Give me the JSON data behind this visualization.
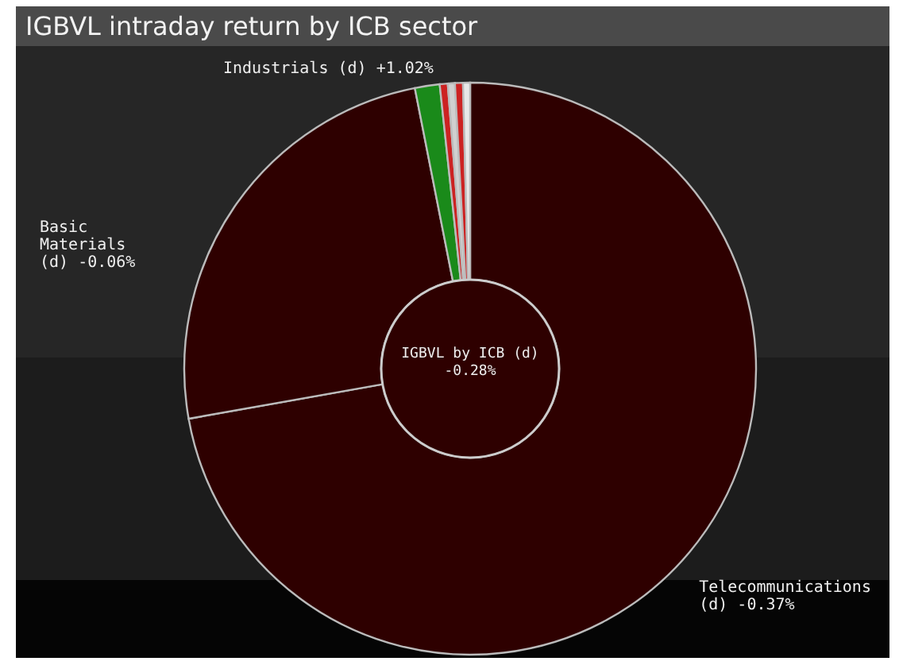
{
  "chart_data": {
    "type": "donut",
    "title": "IGBVL intraday return by ICB sector",
    "categories": [
      "Telecommunications (d) -0.37%",
      "Basic Materials (d) -0.06%",
      "Industrials (d) +1.02%",
      null,
      null,
      null,
      null
    ],
    "values": [
      72.2,
      24.7,
      1.4,
      0.45,
      0.4,
      0.45,
      0.4
    ],
    "colors": [
      "#2e0000",
      "#2e0000",
      "#1a8a1a",
      "#cc2222",
      "#d0d0d0",
      "#cc2222",
      "#e8e8e8"
    ],
    "annotations": [
      "IGBVL by ICB (d)",
      "-0.28%"
    ]
  }
}
